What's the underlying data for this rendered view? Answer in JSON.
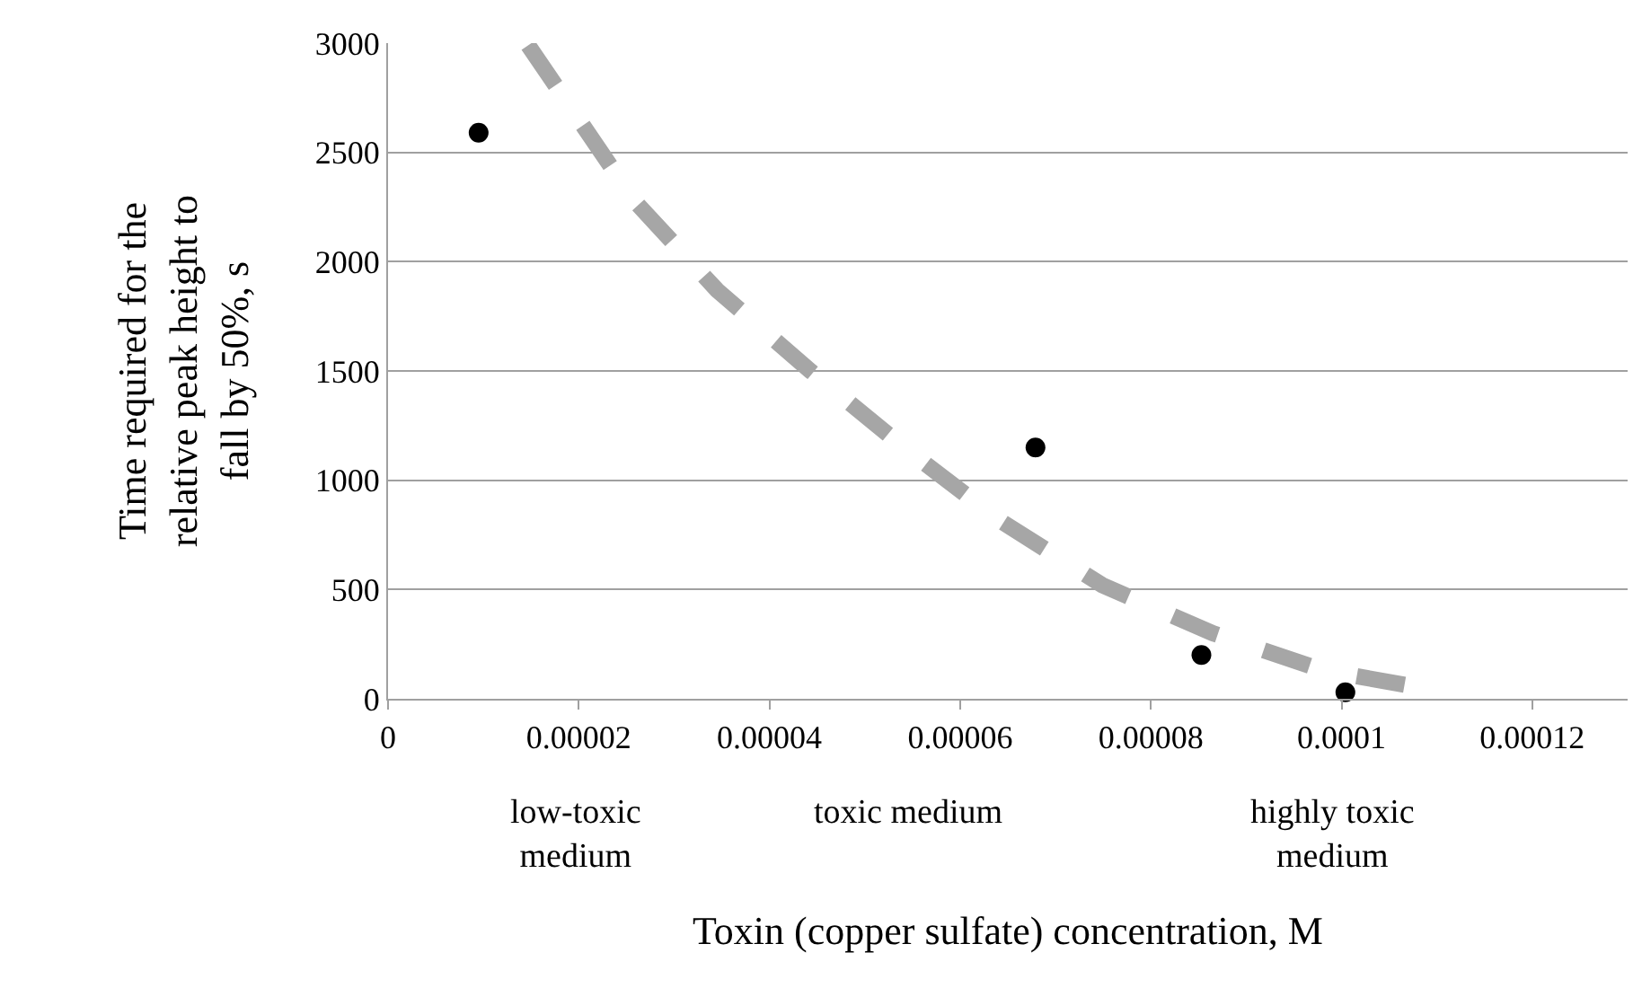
{
  "chart_data": {
    "type": "scatter",
    "xlabel": "Toxin (copper sulfate) concentration, M",
    "ylabel": "Time required for the relative peak height to fall by 50%, s",
    "xlim": [
      0,
      0.00013
    ],
    "ylim": [
      0,
      3000
    ],
    "xticks": [
      0,
      {
        "value": 2e-05,
        "label": "0.00002"
      },
      {
        "value": 4e-05,
        "label": "0.00004"
      },
      {
        "value": 6e-05,
        "label": "0.00006"
      },
      {
        "value": 8e-05,
        "label": "0.00008"
      },
      {
        "value": 0.0001,
        "label": "0.0001"
      },
      {
        "value": 0.00012,
        "label": "0.00012"
      }
    ],
    "yticks": [
      0,
      500,
      1000,
      1500,
      2000,
      2500,
      3000
    ],
    "grid": "y",
    "legend": false,
    "series": [
      {
        "color": "#000000",
        "marker": "circle",
        "x": [
          9.5e-06,
          6.79e-05,
          8.53e-05,
          0.0001004
        ],
        "values": [
          2590,
          1150,
          200,
          30
        ]
      },
      {
        "type": "line",
        "color": "#a6a6a6",
        "marker": "none",
        "line_style": "dashed",
        "x": [
          1.47e-05,
          2.58e-05,
          3.45e-05,
          4.43e-05,
          5.44e-05,
          6.4e-05,
          7.49e-05,
          8.65e-05,
          9.81e-05,
          0.000111
        ],
        "values": [
          2990,
          2280,
          1870,
          1500,
          1140,
          820,
          520,
          300,
          130,
          30
        ]
      }
    ],
    "annotations": [
      "low-toxic medium",
      "toxic medium",
      "highly toxic medium"
    ]
  }
}
